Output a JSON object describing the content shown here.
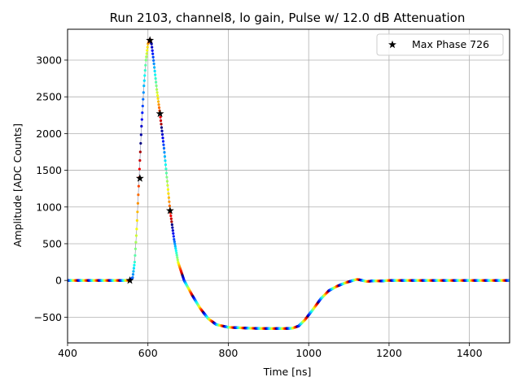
{
  "chart_data": {
    "type": "scatter",
    "title": "Run 2103, channel8, lo gain, Pulse w/ 12.0 dB Attenuation",
    "xlabel": "Time [ns]",
    "ylabel": "Amplitude [ADC Counts]",
    "xlim": [
      400,
      1500
    ],
    "ylim": [
      -850,
      3420
    ],
    "xticks": [
      400,
      600,
      800,
      1000,
      1200,
      1400
    ],
    "yticks": [
      -500,
      0,
      500,
      1000,
      1500,
      2000,
      2500,
      3000
    ],
    "grid": true,
    "legend": {
      "placement": "top-right",
      "entries": [
        "Max Phase 726"
      ]
    },
    "colormap": "jet",
    "pulse_trace": [
      [
        400,
        0
      ],
      [
        540,
        0
      ],
      [
        555,
        2
      ],
      [
        562,
        40
      ],
      [
        567,
        250
      ],
      [
        572,
        700
      ],
      [
        578,
        1400
      ],
      [
        584,
        2100
      ],
      [
        590,
        2650
      ],
      [
        595,
        3000
      ],
      [
        600,
        3220
      ],
      [
        605,
        3280
      ],
      [
        609,
        3220
      ],
      [
        615,
        2950
      ],
      [
        622,
        2600
      ],
      [
        630,
        2270
      ],
      [
        640,
        1800
      ],
      [
        648,
        1350
      ],
      [
        655,
        960
      ],
      [
        665,
        560
      ],
      [
        675,
        250
      ],
      [
        690,
        0
      ],
      [
        710,
        -200
      ],
      [
        730,
        -380
      ],
      [
        750,
        -520
      ],
      [
        770,
        -600
      ],
      [
        800,
        -638
      ],
      [
        850,
        -650
      ],
      [
        900,
        -655
      ],
      [
        940,
        -655
      ],
      [
        960,
        -650
      ],
      [
        975,
        -620
      ],
      [
        990,
        -540
      ],
      [
        1010,
        -400
      ],
      [
        1030,
        -250
      ],
      [
        1050,
        -140
      ],
      [
        1070,
        -80
      ],
      [
        1090,
        -35
      ],
      [
        1110,
        0
      ],
      [
        1120,
        15
      ],
      [
        1130,
        5
      ],
      [
        1145,
        -15
      ],
      [
        1160,
        -5
      ],
      [
        1180,
        -8
      ],
      [
        1200,
        0
      ],
      [
        1300,
        0
      ],
      [
        1500,
        0
      ]
    ],
    "max_phase_markers": [
      {
        "x": 555,
        "y": 0
      },
      {
        "x": 580,
        "y": 1390
      },
      {
        "x": 605,
        "y": 3270
      },
      {
        "x": 630,
        "y": 2270
      },
      {
        "x": 655,
        "y": 950
      }
    ]
  }
}
